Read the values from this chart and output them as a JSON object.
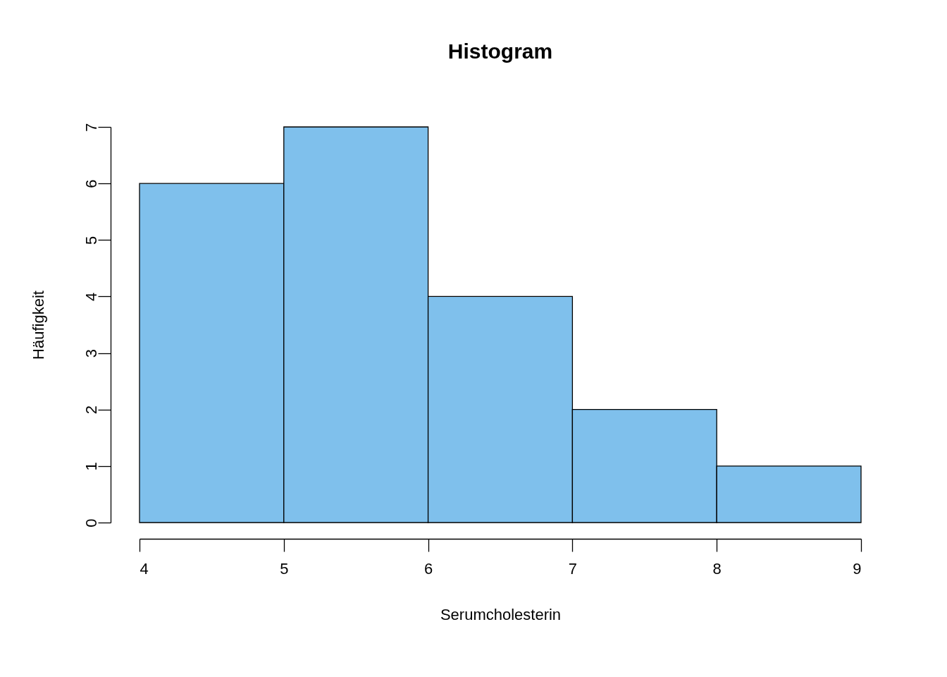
{
  "chart_data": {
    "type": "histogram",
    "title": "Histogram",
    "xlabel": "Serumcholesterin",
    "ylabel": "Häufigkeit",
    "bins": [
      4,
      5,
      6,
      7,
      8,
      9
    ],
    "values": [
      6,
      7,
      4,
      2,
      1
    ],
    "color": "#7fc0ec",
    "xlim": [
      4,
      9
    ],
    "ylim": [
      0,
      7
    ],
    "xticks": [
      4,
      5,
      6,
      7,
      8,
      9
    ],
    "yticks": [
      0,
      1,
      2,
      3,
      4,
      5,
      6,
      7
    ]
  }
}
